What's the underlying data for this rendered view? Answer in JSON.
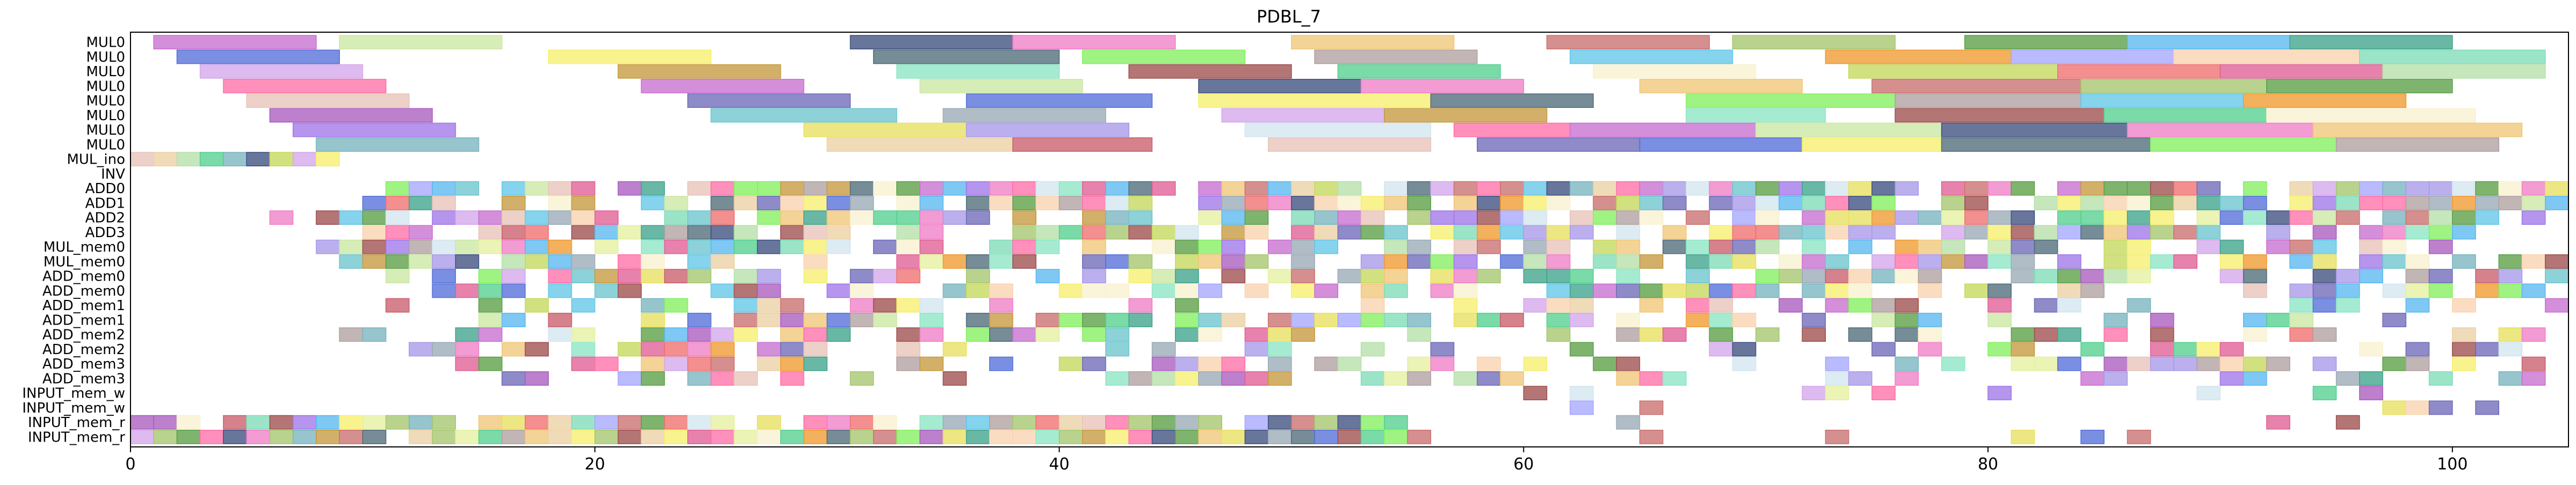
{
  "chart_data": {
    "type": "gantt",
    "title": "PDBL_7",
    "xlabel": "",
    "ylabel": "",
    "xlim": [
      0,
      105
    ],
    "xticks": [
      0,
      20,
      40,
      60,
      80,
      100
    ],
    "grid": false,
    "rows": [
      "MUL0",
      "MUL0",
      "MUL0",
      "MUL0",
      "MUL0",
      "MUL0",
      "MUL0",
      "MUL0",
      "MUL_ino",
      "INV",
      "ADD0",
      "ADD1",
      "ADD2",
      "ADD3",
      "MUL_mem0",
      "MUL_mem0",
      "ADD_mem0",
      "ADD_mem0",
      "ADD_mem1",
      "ADD_mem1",
      "ADD_mem2",
      "ADD_mem2",
      "ADD_mem3",
      "ADD_mem3",
      "INPUT_mem_w",
      "INPUT_mem_w",
      "INPUT_mem_r",
      "INPUT_mem_r"
    ],
    "long_tasks": [
      [
        [
          1,
          8
        ],
        [
          9,
          16
        ],
        [
          31,
          38
        ],
        [
          38,
          45
        ],
        [
          50,
          57
        ],
        [
          61,
          68
        ],
        [
          69,
          76
        ],
        [
          79,
          86
        ],
        [
          86,
          93
        ],
        [
          93,
          100
        ]
      ],
      [
        [
          2,
          9
        ],
        [
          18,
          25
        ],
        [
          32,
          40
        ],
        [
          41,
          48
        ],
        [
          51,
          58
        ],
        [
          62,
          69
        ],
        [
          73,
          81
        ],
        [
          81,
          88
        ],
        [
          88,
          96
        ],
        [
          96,
          104
        ]
      ],
      [
        [
          3,
          10
        ],
        [
          21,
          28
        ],
        [
          33,
          40
        ],
        [
          43,
          50
        ],
        [
          52,
          59
        ],
        [
          63,
          70
        ],
        [
          74,
          83
        ],
        [
          83,
          90
        ],
        [
          90,
          97
        ],
        [
          97,
          104
        ]
      ],
      [
        [
          4,
          11
        ],
        [
          22,
          29
        ],
        [
          34,
          41
        ],
        [
          46,
          53
        ],
        [
          53,
          60
        ],
        [
          65,
          72
        ],
        [
          75,
          84
        ],
        [
          84,
          92
        ],
        [
          92,
          100
        ]
      ],
      [
        [
          5,
          12
        ],
        [
          24,
          31
        ],
        [
          36,
          44
        ],
        [
          46,
          56
        ],
        [
          56,
          63
        ],
        [
          67,
          76
        ],
        [
          76,
          84
        ],
        [
          84,
          91
        ],
        [
          91,
          98
        ]
      ],
      [
        [
          6,
          13
        ],
        [
          25,
          33
        ],
        [
          35,
          42
        ],
        [
          47,
          54
        ],
        [
          54,
          61
        ],
        [
          67,
          73
        ],
        [
          76,
          85
        ],
        [
          85,
          92
        ],
        [
          92,
          101
        ]
      ],
      [
        [
          7,
          14
        ],
        [
          29,
          36
        ],
        [
          36,
          43
        ],
        [
          48,
          56
        ],
        [
          57,
          62
        ],
        [
          62,
          70
        ],
        [
          70,
          78
        ],
        [
          78,
          86
        ],
        [
          86,
          94
        ],
        [
          94,
          103
        ]
      ],
      [
        [
          8,
          15
        ],
        [
          30,
          38
        ],
        [
          38,
          44
        ],
        [
          49,
          56
        ],
        [
          58,
          65
        ],
        [
          65,
          72
        ],
        [
          72,
          78
        ],
        [
          78,
          87
        ],
        [
          87,
          95
        ],
        [
          95,
          102
        ]
      ]
    ],
    "task_colors": [
      "#c86fd0",
      "#f8f2d0",
      "#7fdcb8",
      "#9aabb7",
      "#84f060",
      "#5b9f46",
      "#c95f6b",
      "#cbe8a3",
      "#c5d95c",
      "#a077e8",
      "#d3a7eb",
      "#b0a0a0",
      "#5ab8f0",
      "#e8c4b8",
      "#3d4f80",
      "#ef6f6f",
      "#e8e060",
      "#c59a3f",
      "#63c7e8",
      "#3fa38c",
      "#6e6ab8",
      "#f07fc6",
      "#e05f95",
      "#a89ae8",
      "#8ce6c5",
      "#f09a2f",
      "#e6f0a0",
      "#5470d9",
      "#f1c779",
      "#b6e0a9",
      "#d4e6f0",
      "#9f4e4e",
      "#a6a6ff",
      "#a95cbf",
      "#f6ef6e",
      "#cb7070",
      "#78b5bf",
      "#ff6fa8",
      "#55cf8f",
      "#f9d4b0",
      "#6dc5ce",
      "#4f6b7a",
      "#a5c76e",
      "#ecd1a5"
    ]
  }
}
